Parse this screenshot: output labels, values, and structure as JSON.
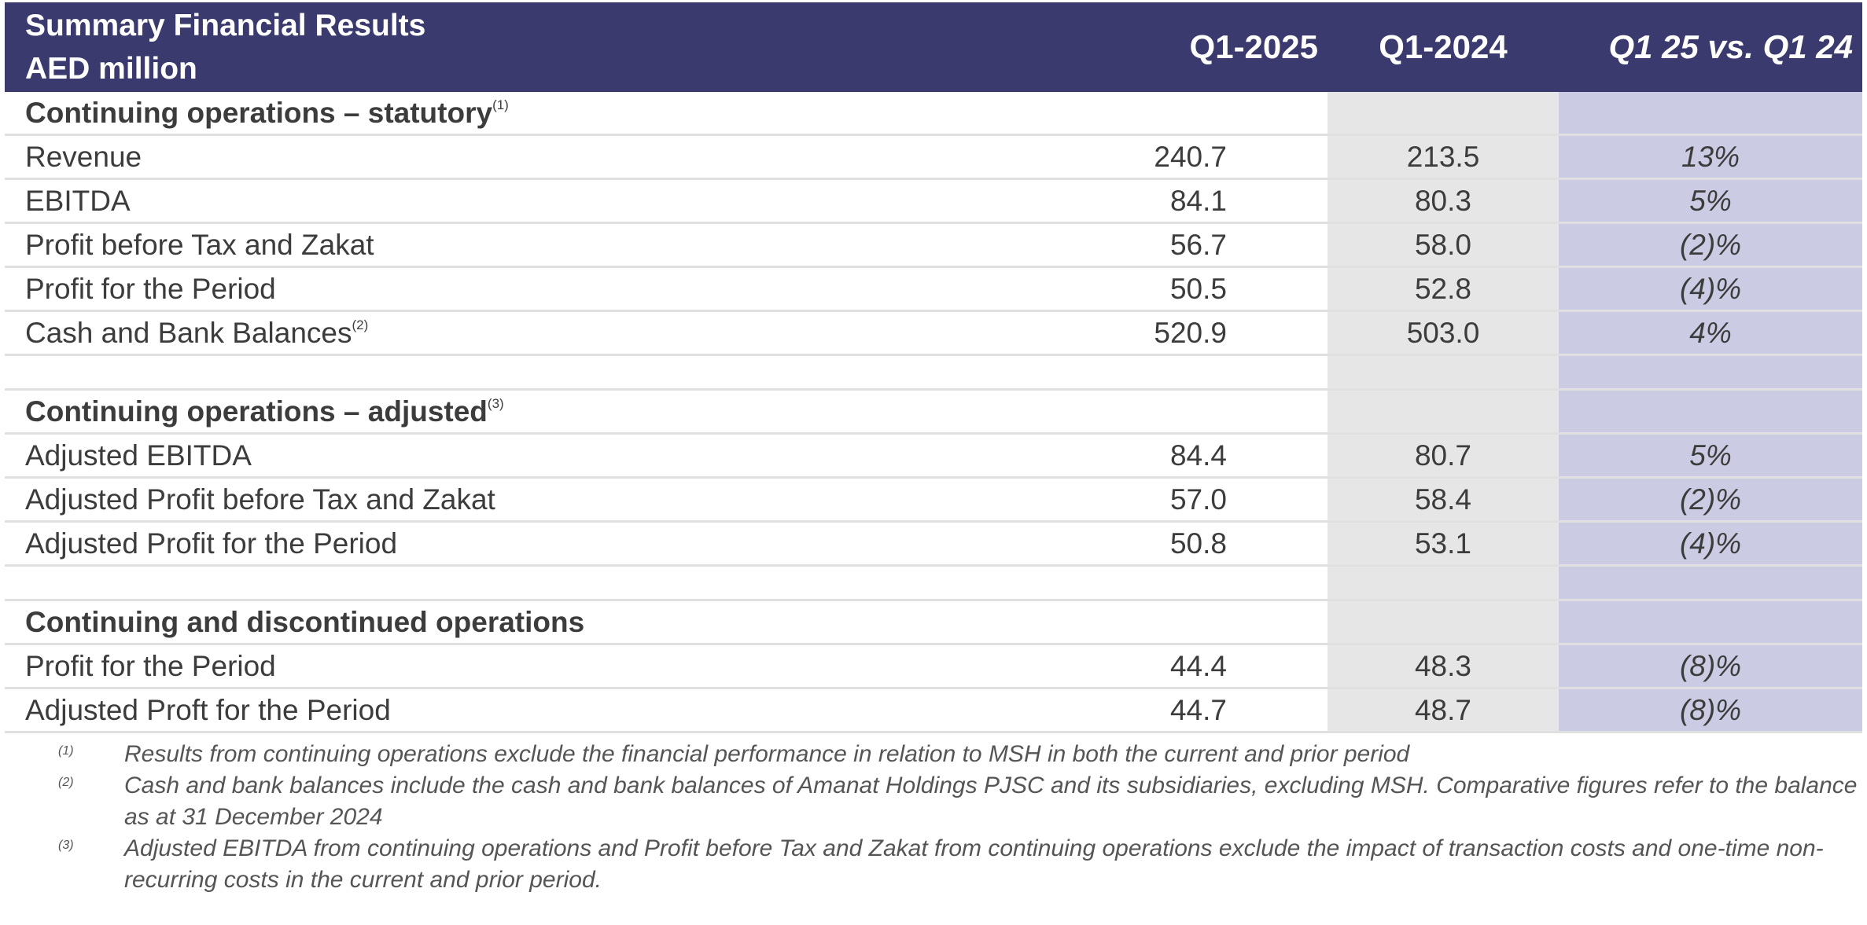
{
  "header": {
    "title_line1": "Summary Financial Results",
    "title_line2": "AED million",
    "col_q1_2025": "Q1-2025",
    "col_q1_2024": "Q1-2024",
    "col_variance": "Q1 25 vs. Q1 24"
  },
  "sections": [
    {
      "title": "Continuing operations – statutory",
      "note": "(1)",
      "rows": [
        {
          "label": "Revenue",
          "note": "",
          "q1_2025": "240.7",
          "q1_2024": "213.5",
          "variance": "13%"
        },
        {
          "label": "EBITDA",
          "note": "",
          "q1_2025": "84.1",
          "q1_2024": "80.3",
          "variance": "5%"
        },
        {
          "label": "Profit before Tax and Zakat",
          "note": "",
          "q1_2025": "56.7",
          "q1_2024": "58.0",
          "variance": "(2)%"
        },
        {
          "label": "Profit for the Period",
          "note": "",
          "q1_2025": "50.5",
          "q1_2024": "52.8",
          "variance": "(4)%"
        },
        {
          "label": "Cash and Bank Balances",
          "note": "(2)",
          "q1_2025": "520.9",
          "q1_2024": "503.0",
          "variance": "4%"
        }
      ]
    },
    {
      "title": "Continuing operations – adjusted",
      "note": "(3)",
      "rows": [
        {
          "label": "Adjusted EBITDA",
          "note": "",
          "q1_2025": "84.4",
          "q1_2024": "80.7",
          "variance": "5%"
        },
        {
          "label": "Adjusted Profit before Tax and Zakat",
          "note": "",
          "q1_2025": "57.0",
          "q1_2024": "58.4",
          "variance": "(2)%"
        },
        {
          "label": "Adjusted Profit for the Period",
          "note": "",
          "q1_2025": "50.8",
          "q1_2024": "53.1",
          "variance": "(4)%"
        }
      ]
    },
    {
      "title": "Continuing and discontinued operations",
      "note": "",
      "rows": [
        {
          "label": "Profit for the Period",
          "note": "",
          "q1_2025": "44.4",
          "q1_2024": "48.3",
          "variance": "(8)%"
        },
        {
          "label": "Adjusted Proft for the Period",
          "note": "",
          "q1_2025": "44.7",
          "q1_2024": "48.7",
          "variance": "(8)%"
        }
      ]
    }
  ],
  "footnotes": [
    {
      "marker": "(1)",
      "text": "Results from continuing operations exclude the financial performance in relation to MSH in both the current and prior period"
    },
    {
      "marker": "(2)",
      "text": "Cash and bank balances include the cash and bank balances of Amanat Holdings PJSC and its subsidiaries, excluding MSH. Comparative figures refer to the balance as at 31 December 2024"
    },
    {
      "marker": "(3)",
      "text": "Adjusted EBITDA from continuing operations and Profit before Tax and Zakat from continuing operations exclude the impact of transaction costs and one-time non-recurring costs in the current and prior period."
    }
  ],
  "colors": {
    "header_bg": "#3a3a6e",
    "q1_2024_col_bg": "#e6e6e6",
    "variance_col_bg": "#cbcbe3",
    "text": "#3c3c3c"
  }
}
